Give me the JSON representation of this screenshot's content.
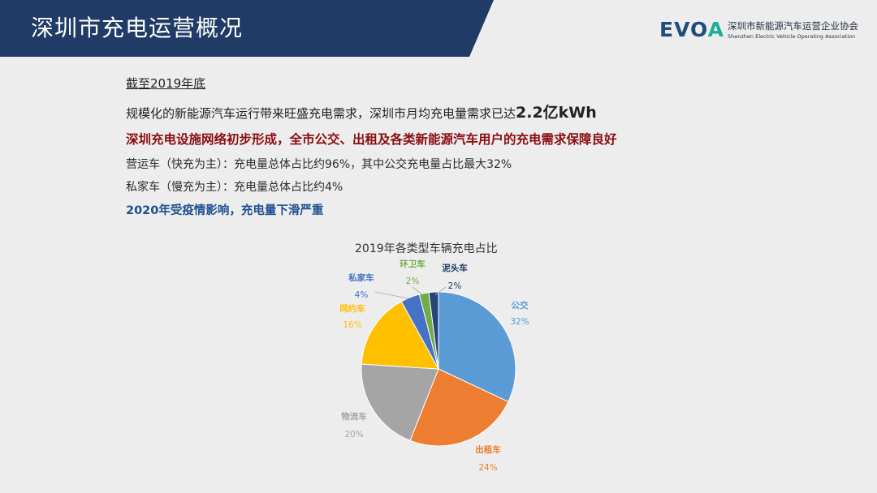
{
  "header": {
    "title": "深圳市充电运营概况",
    "logo_mark_part1": "EVO",
    "logo_mark_part2": "A",
    "logo_cn": "深圳市新能源汽车运营企业协会",
    "logo_en": "Shenzhen Electric Vehicle Operating Association",
    "colors": {
      "bar": "#1f3b66",
      "accent": "#1fae9c"
    }
  },
  "content": {
    "date_line": "截至2019年底",
    "demand_line": "规模化的新能源汽车运行带来旺盛充电需求，深圳市月均充电量需求已达",
    "demand_value": "2.2亿kWh",
    "highlight_line": "深圳充电设施网络初步形成，全市公交、出租及各类新能源汽车用户的充电需求保障良好",
    "operating_line": "营运车（快充为主）：充电量总体占比约96%，其中公交充电量占比最大32%",
    "private_line": "私家车（慢充为主）：充电量总体占比约4%",
    "covid_line": "2020年受疫情影响，充电量下滑严重"
  },
  "chart_data": {
    "type": "pie",
    "title": "2019年各类型车辆充电占比",
    "unit": "%",
    "slices": [
      {
        "label": "公交",
        "value": 32,
        "display": "32%",
        "color": "#5b9bd5"
      },
      {
        "label": "出租车",
        "value": 24,
        "display": "24%",
        "color": "#ed7d31"
      },
      {
        "label": "物流车",
        "value": 20,
        "display": "20%",
        "color": "#a5a5a5"
      },
      {
        "label": "网约车",
        "value": 16,
        "display": "16%",
        "color": "#ffc000"
      },
      {
        "label": "私家车",
        "value": 4,
        "display": "4%",
        "color": "#4472c4"
      },
      {
        "label": "环卫车",
        "value": 2,
        "display": "2%",
        "color": "#70ad47"
      },
      {
        "label": "泥头车",
        "value": 2,
        "display": "2%",
        "color": "#264478"
      }
    ]
  }
}
